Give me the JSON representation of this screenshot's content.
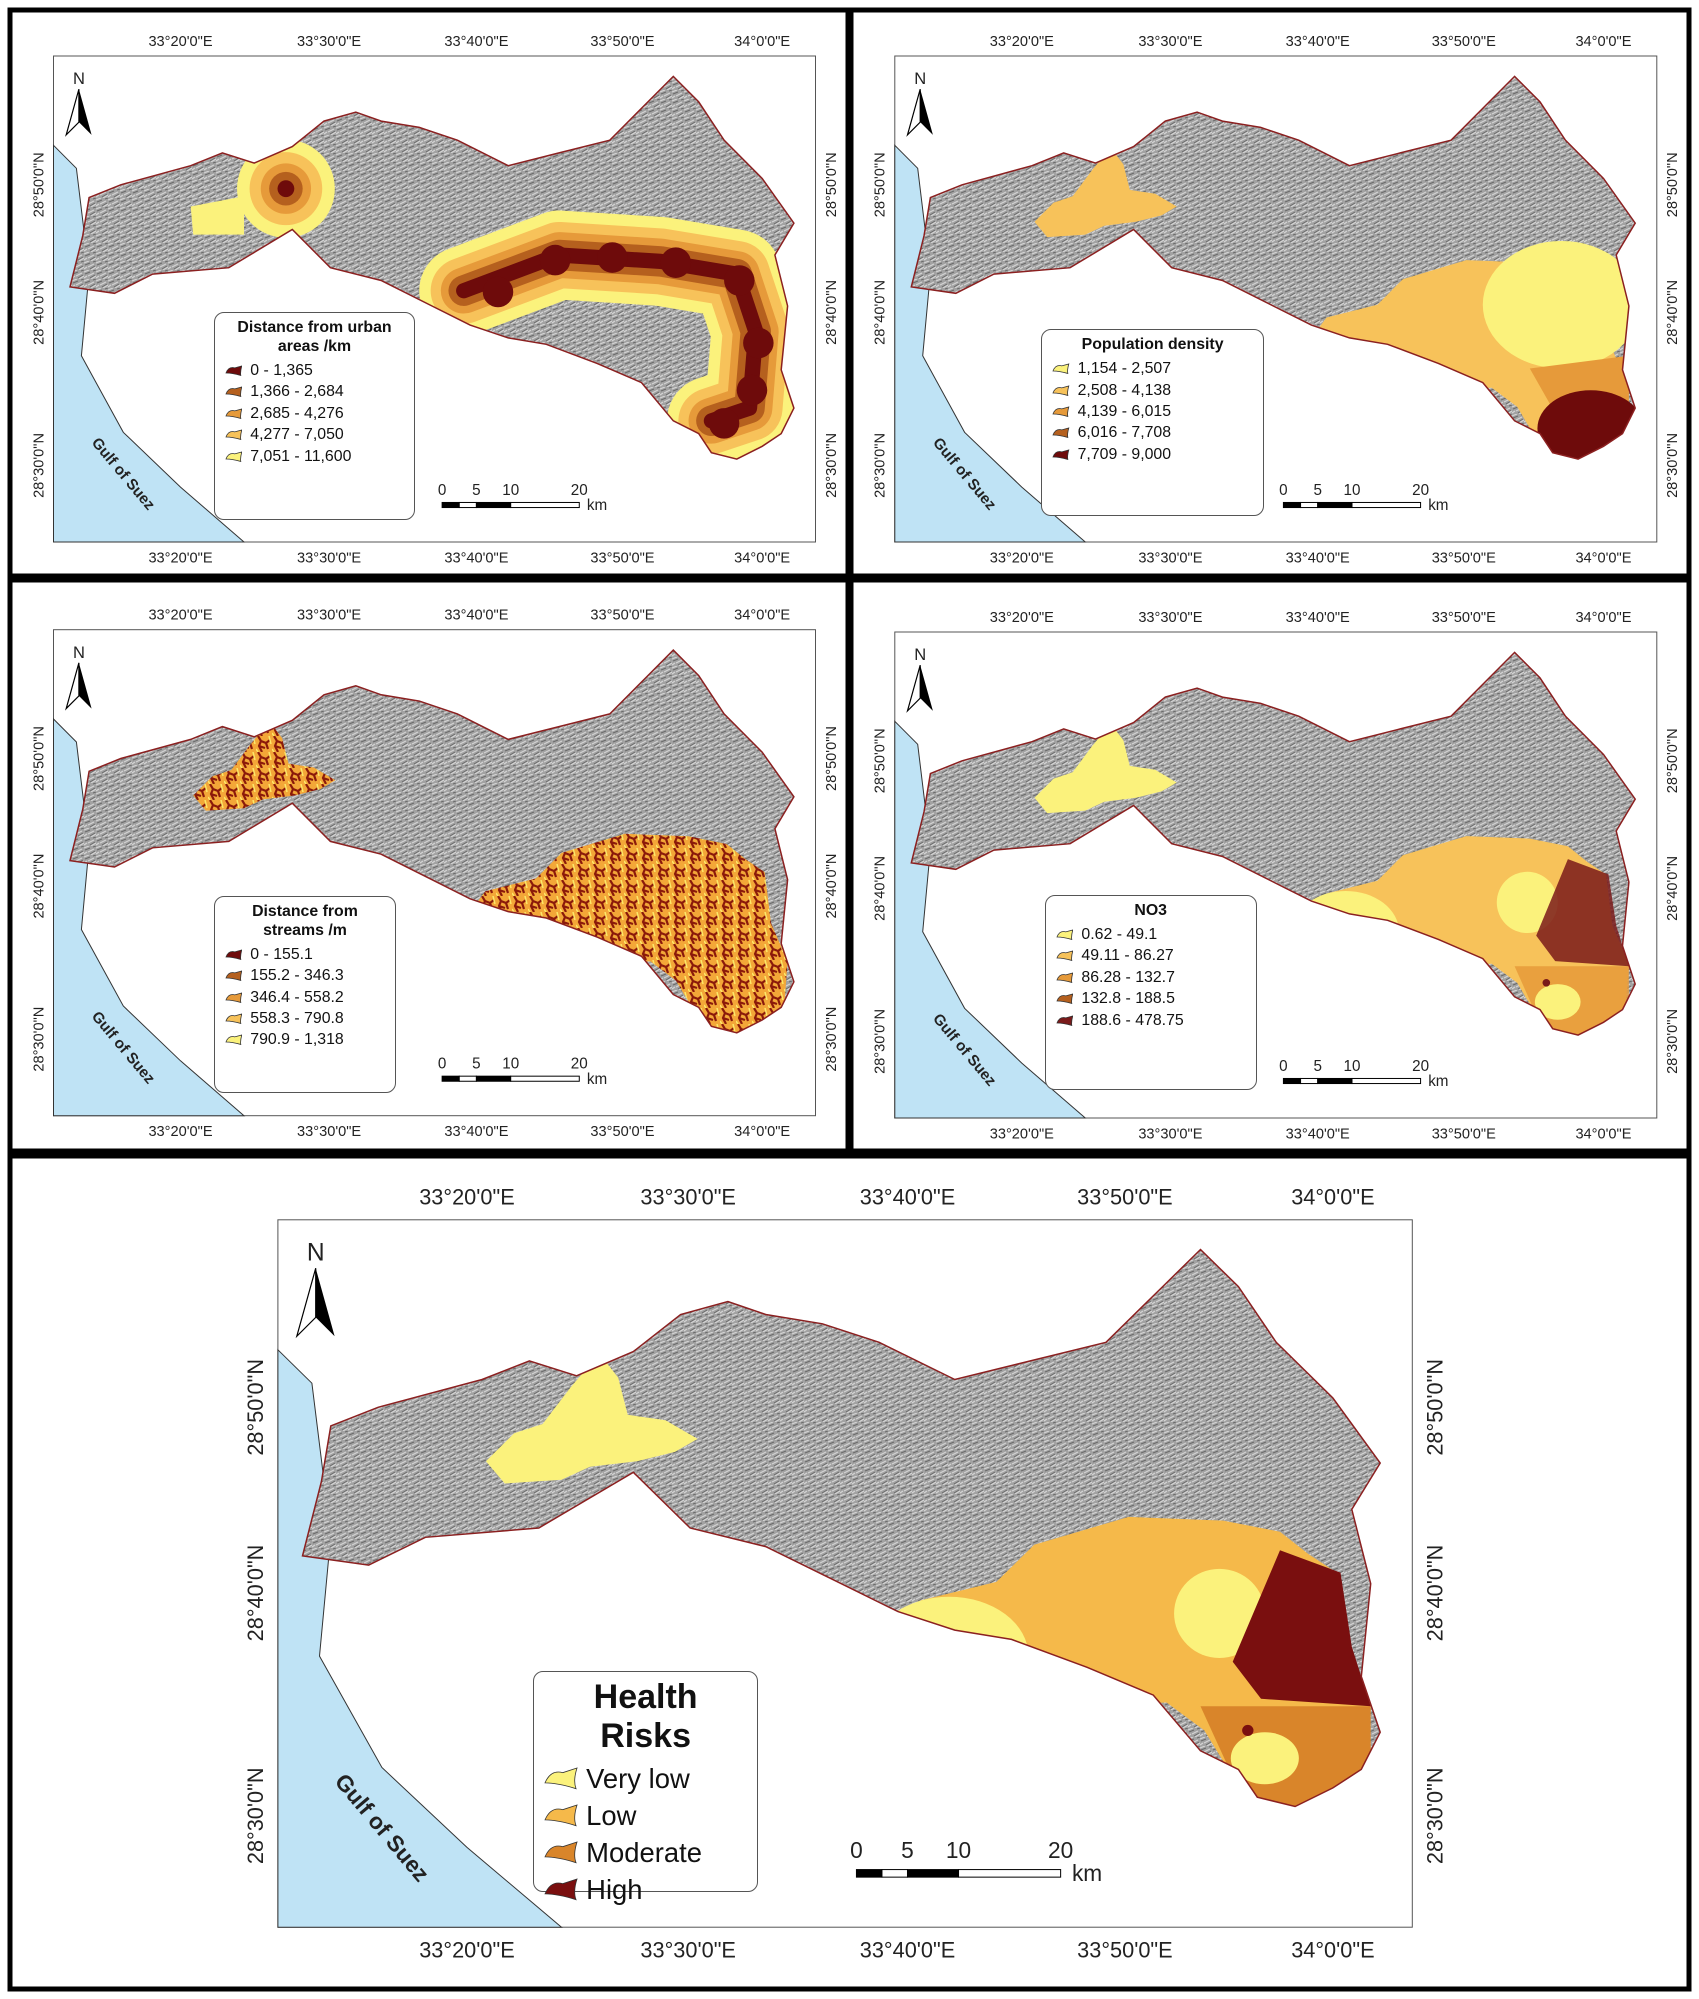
{
  "axes": {
    "lon": [
      "33°20'0\"E",
      "33°30'0\"E",
      "33°40'0\"E",
      "33°50'0\"E",
      "34°0'0\"E"
    ],
    "lat": [
      "28°50'0\"N",
      "28°40'0\"N",
      "28°30'0\"N"
    ]
  },
  "north": "N",
  "sea": "Gulf of Suez",
  "scale": {
    "ticks": [
      "0",
      "5",
      "10",
      "20"
    ],
    "unit": "km"
  },
  "panels": [
    {
      "legend_title": "Distance from urban areas /km",
      "legend": [
        {
          "label": "0 - 1,365",
          "color": "#6e0b0b"
        },
        {
          "label": "1,366 - 2,684",
          "color": "#b5601e"
        },
        {
          "label": "2,685 - 4,276",
          "color": "#e69a3a"
        },
        {
          "label": "4,277 - 7,050",
          "color": "#f7c25a"
        },
        {
          "label": "7,051 - 11,600",
          "color": "#fbf27c"
        }
      ]
    },
    {
      "legend_title": "Population density",
      "legend": [
        {
          "label": "1,154 - 2,507",
          "color": "#fbf27c"
        },
        {
          "label": "2,508 - 4,138",
          "color": "#f7c25a"
        },
        {
          "label": "4,139 - 6,015",
          "color": "#e69a3a"
        },
        {
          "label": "6,016 - 7,708",
          "color": "#b5601e"
        },
        {
          "label": "7,709 - 9,000",
          "color": "#6e0b0b"
        }
      ]
    },
    {
      "legend_title": "Distance from streams /m",
      "legend": [
        {
          "label": "0 - 155.1",
          "color": "#6e0b0b"
        },
        {
          "label": "155.2 - 346.3",
          "color": "#b5601e"
        },
        {
          "label": "346.4 - 558.2",
          "color": "#e69a3a"
        },
        {
          "label": "558.3 - 790.8",
          "color": "#f7c25a"
        },
        {
          "label": "790.9 - 1,318",
          "color": "#fbf27c"
        }
      ]
    },
    {
      "legend_title": "NO3",
      "legend": [
        {
          "label": "0.62 - 49.1",
          "color": "#fbf27c"
        },
        {
          "label": "49.11 - 86.27",
          "color": "#f7c25a"
        },
        {
          "label": "86.28 - 132.7",
          "color": "#e69a3a"
        },
        {
          "label": "132.8 - 188.5",
          "color": "#b5601e"
        },
        {
          "label": "188.6 - 478.75",
          "color": "#7a1a1a"
        }
      ]
    },
    {
      "legend_title": "Health Risks",
      "legend": [
        {
          "label": "Very low",
          "color": "#fbf27c"
        },
        {
          "label": "Low",
          "color": "#f5b94a"
        },
        {
          "label": "Moderate",
          "color": "#d9852a"
        },
        {
          "label": "High",
          "color": "#7a0f0f"
        }
      ]
    }
  ]
}
